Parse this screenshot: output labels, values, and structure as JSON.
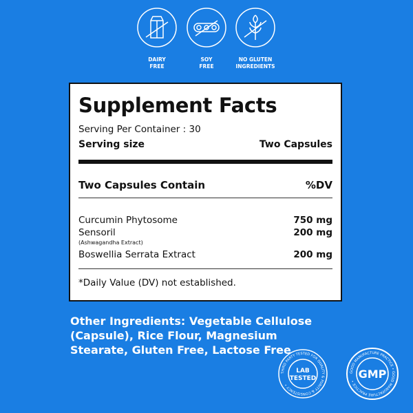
{
  "icons": [
    {
      "name": "dairy-free-icon",
      "label_line1": "DAIRY",
      "label_line2": "FREE"
    },
    {
      "name": "soy-free-icon",
      "label_line1": "SOY",
      "label_line2": "FREE"
    },
    {
      "name": "gluten-free-icon",
      "label_line1": "NO GLUTEN",
      "label_line2": "INGREDIENTS"
    }
  ],
  "facts": {
    "title": "Supplement Facts",
    "serving_per_container": "Serving Per Container : 30",
    "serving_size_label": "Serving size",
    "serving_size_value": "Two Capsules",
    "contain_header": "Two Capsules Contain",
    "dv_header": "%DV",
    "rows": [
      {
        "name": "Curcumin Phytosome",
        "amount": "750 mg"
      },
      {
        "name": "Sensoril",
        "sub": "(Ashwagandha Extract)",
        "amount": "200 mg"
      },
      {
        "name": "Boswellia Serrata Extract",
        "amount": "200 mg"
      }
    ],
    "footnote": "*Daily Value (DV) not established."
  },
  "other_ingredients": "Other Ingredients: Vegetable Cellulose (Capsule), Rice Flour, Magnesium Stearate, Gluten Free, Lactose Free",
  "badges": {
    "lab": {
      "line1": "LAB",
      "line2": "TESTED",
      "ring": "THIRD PARTY TESTED FOR QUALITY & PURITY & CONSISTENCY •"
    },
    "gmp": {
      "center": "GMP",
      "ring": "GOOD MANUFACTURE PRACTICE • GOOD MANUFACTURE PRACTICE •"
    }
  },
  "colors": {
    "background": "#1a7ee3",
    "panel": "#ffffff",
    "text": "#111111"
  }
}
